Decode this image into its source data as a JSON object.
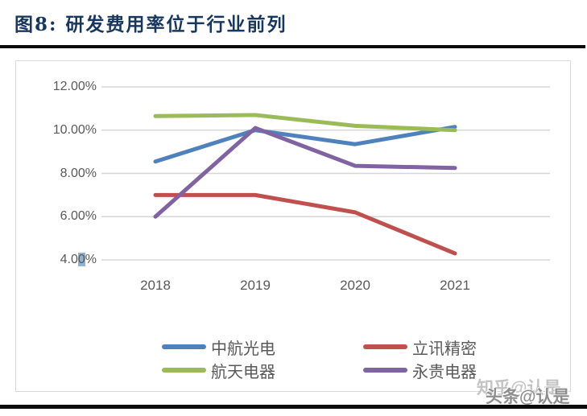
{
  "figure": {
    "title": "图8: 研发费用率位于行业前列"
  },
  "chart_data": {
    "type": "line",
    "title": "研发费用率位于行业前列",
    "categories": [
      "2018",
      "2019",
      "2020",
      "2021"
    ],
    "series": [
      {
        "name": "中航光电",
        "color": "#4F81BD",
        "values": [
          8.55,
          10.0,
          9.35,
          10.15
        ]
      },
      {
        "name": "立讯精密",
        "color": "#C0504D",
        "values": [
          7.0,
          7.0,
          6.2,
          4.3
        ]
      },
      {
        "name": "航天电器",
        "color": "#9BBB59",
        "values": [
          10.65,
          10.7,
          10.2,
          10.0
        ]
      },
      {
        "name": "永贵电器",
        "color": "#8064A2",
        "values": [
          6.0,
          10.1,
          8.35,
          8.25
        ]
      }
    ],
    "y_axis": {
      "ticks": [
        "12.00%",
        "10.00%",
        "8.00%",
        "6.00%",
        "4.00%"
      ],
      "tick_values": [
        12,
        10,
        8,
        6,
        4
      ],
      "selected_tick": {
        "prefix": "4.0",
        "highlight": "0",
        "suffix": "%"
      }
    },
    "ylim": [
      4,
      12
    ],
    "xlabel": "",
    "ylabel": "",
    "grid": "horizontal",
    "legend_position": "bottom"
  },
  "colors": {
    "title_text": "#17375E",
    "axis_text": "#595959",
    "gridline": "#D6D6D6",
    "chart_border": "#D9D9D9",
    "divider_rule": "#0B0B0B",
    "selection_highlight": "#8FB3D6"
  },
  "watermark": {
    "back_text": "知乎@认是",
    "front_text": "头条@认是"
  }
}
